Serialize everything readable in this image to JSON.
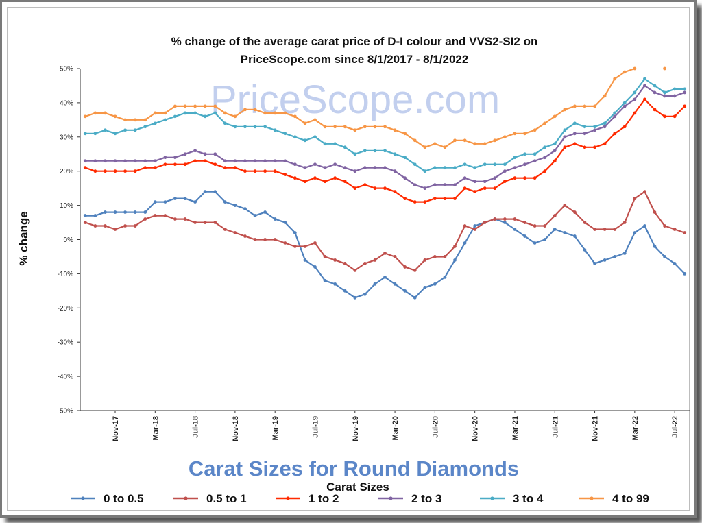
{
  "watermark": "PriceScope.com",
  "chart_data": {
    "type": "line",
    "title_line1": "% change of the average carat price of  D-I colour and VVS2-SI2  on",
    "title_line2": "PriceScope.com since 8/1/2017 - 8/1/2022",
    "ylabel": "% change",
    "xlabel": "Carat Sizes for Round Diamonds",
    "legend_title": "Carat Sizes",
    "ylim": [
      -50,
      50
    ],
    "yticks": [
      "50%",
      "40%",
      "30%",
      "20%",
      "10%",
      "0%",
      "-10%",
      "-20%",
      "-30%",
      "-40%",
      "-50%"
    ],
    "x_tick_labels": [
      {
        "label": "Nov-17",
        "index": 3
      },
      {
        "label": "Mar-18",
        "index": 7
      },
      {
        "label": "Jul-18",
        "index": 11
      },
      {
        "label": "Nov-18",
        "index": 15
      },
      {
        "label": "Mar-19",
        "index": 19
      },
      {
        "label": "Jul-19",
        "index": 23
      },
      {
        "label": "Nov-19",
        "index": 27
      },
      {
        "label": "Mar-20",
        "index": 31
      },
      {
        "label": "Jul-20",
        "index": 35
      },
      {
        "label": "Nov-20",
        "index": 39
      },
      {
        "label": "Mar-21",
        "index": 43
      },
      {
        "label": "Jul-21",
        "index": 47
      },
      {
        "label": "Nov-21",
        "index": 51
      },
      {
        "label": "Mar-22",
        "index": 55
      },
      {
        "label": "Jul-22",
        "index": 59
      }
    ],
    "n_points": 61,
    "grid": false,
    "legend_position": "bottom",
    "series": [
      {
        "name": "0 to 0.5",
        "color": "#4f81bd",
        "values": [
          7,
          7,
          8,
          8,
          8,
          8,
          8,
          11,
          11,
          12,
          12,
          11,
          14,
          14,
          11,
          10,
          9,
          7,
          8,
          6,
          5,
          2,
          -6,
          -8,
          -12,
          -13,
          -15,
          -17,
          -16,
          -13,
          -11,
          -13,
          -15,
          -17,
          -14,
          -13,
          -11,
          -6,
          -1,
          4,
          5,
          6,
          5,
          3,
          1,
          -1,
          0,
          3,
          2,
          1,
          -3,
          -7,
          -6,
          -5,
          -4,
          2,
          4,
          -2,
          -5,
          -7,
          -10
        ]
      },
      {
        "name": "0.5 to 1",
        "color": "#c0504d",
        "values": [
          5,
          4,
          4,
          3,
          4,
          4,
          6,
          7,
          7,
          6,
          6,
          5,
          5,
          5,
          3,
          2,
          1,
          0,
          0,
          0,
          -1,
          -2,
          -2,
          -1,
          -5,
          -6,
          -7,
          -9,
          -7,
          -6,
          -4,
          -5,
          -8,
          -9,
          -6,
          -5,
          -5,
          -2,
          4,
          3,
          5,
          6,
          6,
          6,
          5,
          4,
          4,
          7,
          10,
          8,
          5,
          3,
          3,
          3,
          5,
          12,
          14,
          8,
          4,
          3,
          2
        ]
      },
      {
        "name": "1 to 2",
        "color": "#ff2a00",
        "values": [
          21,
          20,
          20,
          20,
          20,
          20,
          21,
          21,
          22,
          22,
          22,
          23,
          23,
          22,
          21,
          21,
          20,
          20,
          20,
          20,
          19,
          18,
          17,
          18,
          17,
          18,
          17,
          15,
          16,
          15,
          15,
          14,
          12,
          11,
          11,
          12,
          12,
          12,
          15,
          14,
          15,
          15,
          17,
          18,
          18,
          18,
          20,
          23,
          27,
          28,
          27,
          27,
          28,
          31,
          33,
          37,
          41,
          38,
          36,
          36,
          39
        ]
      },
      {
        "name": "2 to 3",
        "color": "#8064a2",
        "values": [
          23,
          23,
          23,
          23,
          23,
          23,
          23,
          23,
          24,
          24,
          25,
          26,
          25,
          25,
          23,
          23,
          23,
          23,
          23,
          23,
          23,
          22,
          21,
          22,
          21,
          22,
          21,
          20,
          21,
          21,
          21,
          20,
          18,
          16,
          15,
          16,
          16,
          16,
          18,
          17,
          17,
          18,
          20,
          21,
          22,
          23,
          24,
          26,
          30,
          31,
          31,
          32,
          33,
          36,
          39,
          41,
          45,
          43,
          42,
          42,
          43
        ]
      },
      {
        "name": "3 to 4",
        "color": "#4bacc6",
        "values": [
          31,
          31,
          32,
          31,
          32,
          32,
          33,
          34,
          35,
          36,
          37,
          37,
          36,
          37,
          34,
          33,
          33,
          33,
          33,
          32,
          31,
          30,
          29,
          30,
          28,
          28,
          27,
          25,
          26,
          26,
          26,
          25,
          24,
          22,
          20,
          21,
          21,
          21,
          22,
          21,
          22,
          22,
          22,
          24,
          25,
          25,
          27,
          28,
          32,
          34,
          33,
          33,
          34,
          37,
          40,
          43,
          47,
          45,
          43,
          44,
          44
        ]
      },
      {
        "name": "4 to 99",
        "color": "#f79646",
        "values": [
          36,
          37,
          37,
          36,
          35,
          35,
          35,
          37,
          37,
          39,
          39,
          39,
          39,
          39,
          37,
          36,
          38,
          38,
          37,
          37,
          37,
          36,
          34,
          35,
          33,
          33,
          33,
          32,
          33,
          33,
          33,
          32,
          31,
          29,
          27,
          28,
          27,
          29,
          29,
          28,
          28,
          29,
          30,
          31,
          31,
          32,
          34,
          36,
          38,
          39,
          39,
          39,
          42,
          47,
          49,
          50,
          null,
          null,
          50,
          null,
          null
        ]
      }
    ]
  }
}
